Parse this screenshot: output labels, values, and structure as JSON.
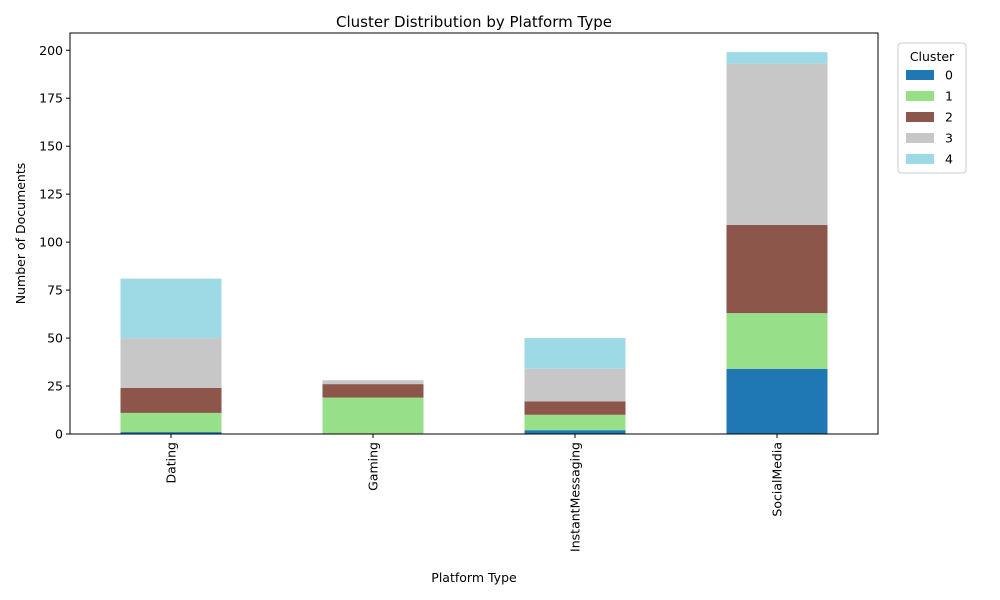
{
  "chart_data": {
    "type": "bar",
    "stacked": true,
    "title": "Cluster Distribution by Platform Type",
    "xlabel": "Platform Type",
    "ylabel": "Number of Documents",
    "categories": [
      "Dating",
      "Gaming",
      "InstantMessaging",
      "SocialMedia"
    ],
    "ylim": [
      0,
      209
    ],
    "yticks": [
      0,
      25,
      50,
      75,
      100,
      125,
      150,
      175,
      200
    ],
    "legend_title": "Cluster",
    "legend_position": "outside-top-right",
    "grid": false,
    "series": [
      {
        "name": "0",
        "color": "#1f77b4",
        "values": [
          1,
          0,
          2,
          34
        ]
      },
      {
        "name": "1",
        "color": "#98df8a",
        "values": [
          10,
          19,
          8,
          29
        ]
      },
      {
        "name": "2",
        "color": "#8c564b",
        "values": [
          13,
          7,
          7,
          46
        ]
      },
      {
        "name": "3",
        "color": "#c7c7c7",
        "values": [
          26,
          2,
          17,
          84
        ]
      },
      {
        "name": "4",
        "color": "#9edae5",
        "values": [
          31,
          0,
          16,
          6
        ]
      }
    ]
  }
}
